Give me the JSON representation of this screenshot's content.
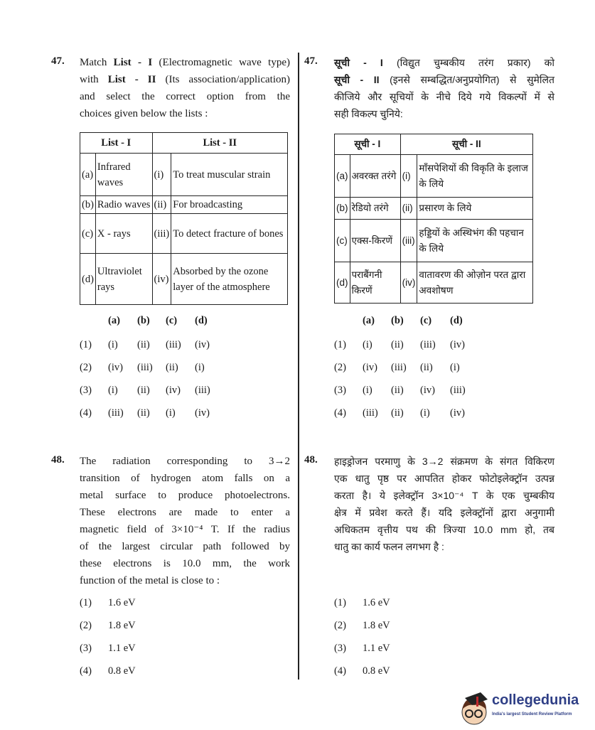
{
  "q47_en": {
    "number": "47.",
    "lines": [
      [
        {
          "t": "Match "
        },
        {
          "t": "List - I",
          "b": true
        },
        {
          "t": " (Electromagnetic wave type)"
        }
      ],
      [
        {
          "t": "with "
        },
        {
          "t": "List - II",
          "b": true
        },
        {
          "t": " (Its association/application)"
        }
      ],
      [
        {
          "t": "and select the correct option from the"
        }
      ],
      [
        {
          "t": "choices given below the lists :"
        }
      ]
    ],
    "table": {
      "headers": [
        "List - I",
        "List - II"
      ],
      "rows": [
        {
          "l1": "(a)",
          "v1": "Infrared waves",
          "l2": "(i)",
          "v2": "To treat muscular strain"
        },
        {
          "l1": "(b)",
          "v1": "Radio waves",
          "l2": "(ii)",
          "v2": "For broadcasting"
        },
        {
          "l1": "(c)",
          "v1": "X - rays",
          "l2": "(iii)",
          "v2": "To detect fracture of bones"
        },
        {
          "l1": "(d)",
          "v1": "Ultraviolet rays",
          "l2": "(iv)",
          "v2": "Absorbed by the ozone layer of the atmosphere"
        }
      ]
    },
    "answer_headers": [
      "(a)",
      "(b)",
      "(c)",
      "(d)"
    ],
    "options": [
      {
        "label": "(1)",
        "values": [
          "(i)",
          "(ii)",
          "(iii)",
          "(iv)"
        ]
      },
      {
        "label": "(2)",
        "values": [
          "(iv)",
          "(iii)",
          "(ii)",
          "(i)"
        ]
      },
      {
        "label": "(3)",
        "values": [
          "(i)",
          "(ii)",
          "(iv)",
          "(iii)"
        ]
      },
      {
        "label": "(4)",
        "values": [
          "(iii)",
          "(ii)",
          "(i)",
          "(iv)"
        ]
      }
    ]
  },
  "q47_hi": {
    "number": "47.",
    "lines": [
      [
        {
          "t": "सूची - I",
          "b": true
        },
        {
          "t": " (विद्युत चुम्बकीय तरंग प्रकार) को"
        }
      ],
      [
        {
          "t": "सूची - II",
          "b": true
        },
        {
          "t": " (इनसे सम्बद्धित/अनुप्रयोगित) से सुमेलित"
        }
      ],
      [
        {
          "t": "कीजिये और सूचियों के नीचे दिये गये विकल्पों में से"
        }
      ],
      [
        {
          "t": "सही विकल्प चुनिये:"
        }
      ]
    ],
    "table": {
      "headers": [
        "सूची - I",
        "सूची - II"
      ],
      "rows": [
        {
          "l1": "(a)",
          "v1": "अवरक्त तरंगे",
          "l2": "(i)",
          "v2": "माँसपेशियों की विकृति के इलाज के लिये"
        },
        {
          "l1": "(b)",
          "v1": "रेडियो तरंगे",
          "l2": "(ii)",
          "v2": "प्रसारण के लिये"
        },
        {
          "l1": "(c)",
          "v1": "एक्स-किरणें",
          "l2": "(iii)",
          "v2": "हड्डियों के अस्थिभंग की पहचान के लिये"
        },
        {
          "l1": "(d)",
          "v1": "पराबैंगनी किरणें",
          "l2": "(iv)",
          "v2": "वातावरण की ओज़ोन परत द्वारा अवशोषण"
        }
      ]
    },
    "answer_headers": [
      "(a)",
      "(b)",
      "(c)",
      "(d)"
    ],
    "options": [
      {
        "label": "(1)",
        "values": [
          "(i)",
          "(ii)",
          "(iii)",
          "(iv)"
        ]
      },
      {
        "label": "(2)",
        "values": [
          "(iv)",
          "(iii)",
          "(ii)",
          "(i)"
        ]
      },
      {
        "label": "(3)",
        "values": [
          "(i)",
          "(ii)",
          "(iv)",
          "(iii)"
        ]
      },
      {
        "label": "(4)",
        "values": [
          "(iii)",
          "(ii)",
          "(i)",
          "(iv)"
        ]
      }
    ]
  },
  "q48_en": {
    "number": "48.",
    "lines": [
      [
        {
          "t": "The radiation corresponding to 3→2"
        }
      ],
      [
        {
          "t": "transition of hydrogen atom falls on a"
        }
      ],
      [
        {
          "t": "metal surface to produce photoelectrons."
        }
      ],
      [
        {
          "t": "These electrons are made to enter a"
        }
      ],
      [
        {
          "t": "magnetic field of 3×10⁻⁴ T.  If the radius"
        }
      ],
      [
        {
          "t": "of the largest circular path followed by"
        }
      ],
      [
        {
          "t": "these electrons is 10.0 mm, the work"
        }
      ],
      [
        {
          "t": "function of the metal is close to :"
        }
      ]
    ],
    "options": [
      {
        "label": "(1)",
        "value": "1.6 eV"
      },
      {
        "label": "(2)",
        "value": "1.8 eV"
      },
      {
        "label": "(3)",
        "value": "1.1 eV"
      },
      {
        "label": "(4)",
        "value": "0.8 eV"
      }
    ]
  },
  "q48_hi": {
    "number": "48.",
    "lines": [
      [
        {
          "t": "हाइड्रोजन परमाणु के 3→2 संक्रमण के संगत विकिरण"
        }
      ],
      [
        {
          "t": "एक धातु पृष्ठ पर आपतित होकर फोटोइलेक्ट्रॉन उत्पन्न"
        }
      ],
      [
        {
          "t": "करता है।  ये इलेक्ट्रॉन 3×10⁻⁴ T के एक चुम्बकीय"
        }
      ],
      [
        {
          "t": "क्षेत्र में प्रवेश करते हैं।  यदि इलेक्ट्रॉनों द्वारा अनुगामी"
        }
      ],
      [
        {
          "t": "अधिकतम वृत्तीय पथ की त्रिज्या 10.0 mm हो, तब"
        }
      ],
      [
        {
          "t": "धातु का कार्य फलन लगभग है :"
        }
      ]
    ],
    "options": [
      {
        "label": "(1)",
        "value": "1.6 eV"
      },
      {
        "label": "(2)",
        "value": "1.8 eV"
      },
      {
        "label": "(3)",
        "value": "1.1 eV"
      },
      {
        "label": "(4)",
        "value": "0.8 eV"
      }
    ]
  },
  "watermark": {
    "brand": "collegedunia",
    "tagline": "India's largest Student Review Platform",
    "brand_color": "#2f3f86"
  }
}
